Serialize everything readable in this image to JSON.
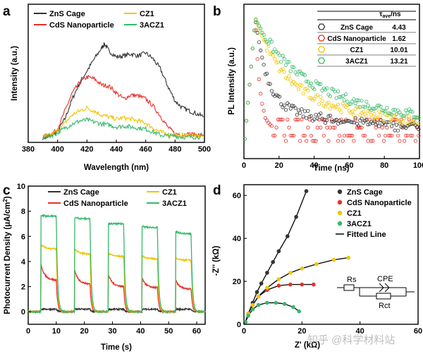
{
  "colors": {
    "zns": "#333333",
    "cds": "#e8302a",
    "cz1": "#f2c400",
    "aczs": "#35b96a",
    "fit": "#111111"
  },
  "watermark": {
    "text": "知乎 @科学材料站"
  },
  "chart_data": [
    {
      "panel": "a",
      "type": "line",
      "xlabel": "Wavelength (nm)",
      "ylabel": "Intensity (a.u.)",
      "xlim": [
        380,
        500
      ],
      "ylim": [
        0,
        1
      ],
      "xticks": [
        380,
        400,
        420,
        440,
        460,
        480,
        500
      ],
      "legend_position": "top",
      "series": [
        {
          "name": "ZnS Cage",
          "color": "#333333",
          "x": [
            390,
            395,
            400,
            405,
            410,
            415,
            420,
            425,
            430,
            432,
            435,
            440,
            445,
            450,
            455,
            460,
            465,
            470,
            475,
            480,
            485,
            490,
            495,
            500
          ],
          "y": [
            0.03,
            0.05,
            0.1,
            0.22,
            0.42,
            0.58,
            0.7,
            0.82,
            0.93,
            0.97,
            0.9,
            0.84,
            0.85,
            0.87,
            0.85,
            0.88,
            0.82,
            0.72,
            0.55,
            0.4,
            0.33,
            0.3,
            0.27,
            0.24
          ]
        },
        {
          "name": "CdS Nanoparticle",
          "color": "#e8302a",
          "x": [
            390,
            395,
            400,
            405,
            410,
            415,
            420,
            425,
            430,
            435,
            440,
            445,
            450,
            455,
            460,
            465,
            470,
            475,
            480,
            485,
            490,
            495,
            500
          ],
          "y": [
            0.04,
            0.06,
            0.12,
            0.3,
            0.48,
            0.58,
            0.64,
            0.62,
            0.56,
            0.55,
            0.48,
            0.42,
            0.46,
            0.45,
            0.42,
            0.35,
            0.25,
            0.14,
            0.07,
            0.06,
            0.07,
            0.06,
            0.06
          ]
        },
        {
          "name": "CZ1",
          "color": "#f2c400",
          "x": [
            390,
            395,
            400,
            405,
            410,
            415,
            420,
            425,
            430,
            435,
            440,
            445,
            450,
            455,
            460,
            465,
            470,
            475,
            480,
            485,
            490,
            495,
            500
          ],
          "y": [
            0.04,
            0.06,
            0.1,
            0.18,
            0.26,
            0.3,
            0.33,
            0.3,
            0.26,
            0.24,
            0.22,
            0.23,
            0.22,
            0.2,
            0.18,
            0.13,
            0.09,
            0.07,
            0.06,
            0.06,
            0.06,
            0.05,
            0.05
          ]
        },
        {
          "name": "3ACZ1",
          "color": "#35b96a",
          "x": [
            390,
            395,
            400,
            405,
            410,
            415,
            420,
            425,
            430,
            435,
            440,
            445,
            450,
            455,
            460,
            465,
            470,
            475,
            480,
            485,
            490,
            495,
            500
          ],
          "y": [
            0.03,
            0.05,
            0.08,
            0.13,
            0.17,
            0.2,
            0.21,
            0.19,
            0.17,
            0.16,
            0.14,
            0.15,
            0.14,
            0.13,
            0.12,
            0.09,
            0.06,
            0.05,
            0.05,
            0.04,
            0.04,
            0.04,
            0.04
          ]
        }
      ]
    },
    {
      "panel": "b",
      "type": "scatter",
      "xlabel": "Time (ns)",
      "ylabel": "PL Intensity (a.u.)",
      "xlim": [
        0,
        100
      ],
      "ylim": [
        0,
        1
      ],
      "xticks": [
        0,
        20,
        40,
        60,
        80,
        100
      ],
      "table_header": [
        "",
        "",
        "τave/ns"
      ],
      "table_rows": [
        {
          "name": "ZnS Cage",
          "tau": "4.43",
          "color": "#333333"
        },
        {
          "name": "CdS Nanoparticle",
          "tau": "1.62",
          "color": "#e8302a"
        },
        {
          "name": "CZ1",
          "tau": "10.01",
          "color": "#f2c400"
        },
        {
          "name": "3ACZ1",
          "tau": "13.21",
          "color": "#35b96a"
        }
      ],
      "series": [
        {
          "name": "ZnS Cage",
          "color": "#333333",
          "tau": 4.43,
          "floor": 0.15
        },
        {
          "name": "CdS Nanoparticle",
          "color": "#e8302a",
          "tau": 1.62,
          "floor": 0.08
        },
        {
          "name": "CZ1",
          "color": "#f2c400",
          "tau": 10.01,
          "floor": 0.2
        },
        {
          "name": "3ACZ1",
          "color": "#35b96a",
          "tau": 13.21,
          "floor": 0.25
        }
      ]
    },
    {
      "panel": "c",
      "type": "line",
      "xlabel": "Time (s)",
      "ylabel": "Photocurrent Density (μA/cm²)",
      "xlim": [
        0,
        63
      ],
      "ylim": [
        -1,
        10
      ],
      "xticks": [
        0,
        10,
        20,
        30,
        40,
        50,
        60
      ],
      "yticks": [
        0,
        2,
        4,
        6,
        8,
        10
      ],
      "legend_position": "top",
      "on_intervals": [
        [
          4.5,
          10
        ],
        [
          16.5,
          22
        ],
        [
          28.5,
          34
        ],
        [
          40.5,
          46
        ],
        [
          52.5,
          58
        ]
      ],
      "series": [
        {
          "name": "ZnS Cage",
          "color": "#333333",
          "peak": [
            0.2,
            0.2,
            0.2,
            0.2,
            0.2
          ],
          "end": [
            0.2,
            0.2,
            0.2,
            0.2,
            0.2
          ]
        },
        {
          "name": "CdS Nanoparticle",
          "color": "#e8302a",
          "peak": [
            3.8,
            3.3,
            3.0,
            2.7,
            2.5
          ],
          "end": [
            2.5,
            2.2,
            2.0,
            1.9,
            1.8
          ]
        },
        {
          "name": "CZ1",
          "color": "#f2c400",
          "peak": [
            5.4,
            5.0,
            4.7,
            4.5,
            4.3
          ],
          "end": [
            5.0,
            4.6,
            4.4,
            4.2,
            4.1
          ]
        },
        {
          "name": "3ACZ1",
          "color": "#35b96a",
          "peak": [
            7.7,
            7.5,
            7.0,
            6.8,
            6.4
          ],
          "end": [
            7.6,
            7.4,
            7.0,
            6.7,
            6.2
          ]
        }
      ]
    },
    {
      "panel": "d",
      "type": "scatter",
      "xlabel": "Z' (kΩ)",
      "ylabel": "-Z'' (kΩ)",
      "xlim": [
        0,
        60
      ],
      "ylim": [
        0,
        65
      ],
      "xticks": [
        0,
        20,
        40,
        60
      ],
      "yticks": [
        0,
        20,
        40,
        60
      ],
      "circuit_labels": {
        "rs": "Rs",
        "cpe": "CPE",
        "rct": "Rct"
      },
      "legend": [
        "ZnS Cage",
        "CdS Nanoparticle",
        "CZ1",
        "3ACZ1",
        "Fitted Line"
      ],
      "series": [
        {
          "name": "ZnS Cage",
          "color": "#333333",
          "points": [
            [
              0.5,
              1
            ],
            [
              1.5,
              5
            ],
            [
              3,
              10
            ],
            [
              4.5,
              15
            ],
            [
              6,
              19
            ],
            [
              8,
              24
            ],
            [
              10,
              29
            ],
            [
              12,
              34
            ],
            [
              15,
              41
            ],
            [
              18,
              50
            ],
            [
              21.5,
              62
            ]
          ]
        },
        {
          "name": "CdS Nanoparticle",
          "color": "#e8302a",
          "points": [
            [
              0.5,
              1
            ],
            [
              1.5,
              5
            ],
            [
              3,
              9
            ],
            [
              5,
              13
            ],
            [
              8,
              16
            ],
            [
              12,
              18
            ],
            [
              16,
              18.5
            ],
            [
              20,
              18.5
            ],
            [
              24,
              18.5
            ]
          ]
        },
        {
          "name": "CZ1",
          "color": "#f2c400",
          "points": [
            [
              0.5,
              1
            ],
            [
              1.5,
              5
            ],
            [
              3,
              9
            ],
            [
              5,
              13
            ],
            [
              8,
              17
            ],
            [
              12,
              21
            ],
            [
              16,
              24
            ],
            [
              20,
              26
            ],
            [
              25,
              28
            ],
            [
              31,
              30
            ],
            [
              36,
              31
            ]
          ]
        },
        {
          "name": "3ACZ1",
          "color": "#35b96a",
          "points": [
            [
              0.5,
              1
            ],
            [
              1.5,
              4
            ],
            [
              3,
              7
            ],
            [
              5,
              9
            ],
            [
              8,
              10
            ],
            [
              11,
              10
            ],
            [
              14,
              9.5
            ],
            [
              17,
              8
            ],
            [
              19,
              6
            ]
          ]
        }
      ]
    }
  ]
}
